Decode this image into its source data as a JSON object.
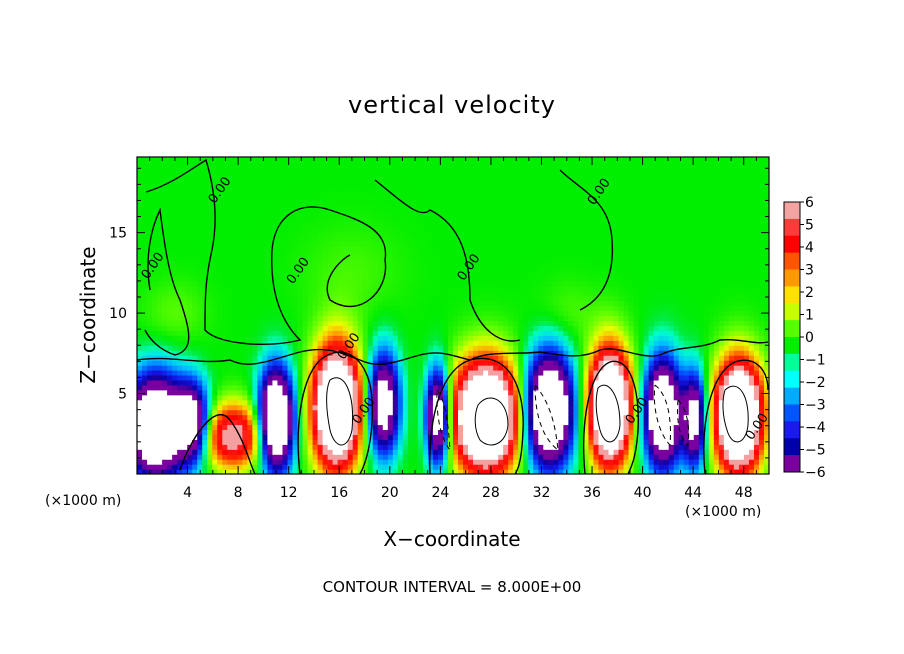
{
  "chart_data": {
    "type": "heatmap",
    "title": "vertical velocity",
    "xlabel": "X−coordinate",
    "ylabel": "Z−coordinate",
    "x_unit": "(×1000 m)",
    "x_unit_right": "(×1000 m)",
    "footer": "CONTOUR INTERVAL = 8.000E+00",
    "xlim": [
      0,
      50
    ],
    "ylim": [
      0,
      19.7
    ],
    "x_ticks": [
      4,
      8,
      12,
      16,
      20,
      24,
      28,
      32,
      36,
      40,
      44,
      48
    ],
    "y_ticks": [
      5,
      10,
      15
    ],
    "colorbar": {
      "ticks": [
        6,
        5,
        4,
        3,
        2,
        1,
        0,
        -1,
        -2,
        -3,
        -4,
        -5,
        -6
      ],
      "range": [
        -6,
        6
      ],
      "colors": [
        "#f4a3a3",
        "#ff3a3a",
        "#ff0000",
        "#ff5500",
        "#ff9900",
        "#ffe000",
        "#c8ff00",
        "#55ff00",
        "#00ee00",
        "#00ff99",
        "#00ffff",
        "#00aaff",
        "#0055ff",
        "#1a1aee",
        "#0000aa",
        "#7a00a0"
      ]
    },
    "contour_labels": [
      {
        "text": "0.00",
        "x": 6.8,
        "y": 17.5
      },
      {
        "text": "0.00",
        "x": 1.5,
        "y": 12.8
      },
      {
        "text": "0.00",
        "x": 13.0,
        "y": 12.5
      },
      {
        "text": "0.00",
        "x": 17.0,
        "y": 7.8
      },
      {
        "text": "0.00",
        "x": 18.2,
        "y": 3.8
      },
      {
        "text": "0.00",
        "x": 26.5,
        "y": 12.7
      },
      {
        "text": "0.00",
        "x": 36.8,
        "y": 17.4
      },
      {
        "text": "0.00",
        "x": 39.8,
        "y": 3.8
      },
      {
        "text": "0.00",
        "x": 49.3,
        "y": 2.8
      }
    ],
    "cells": [
      {
        "x": 1.5,
        "y": 3.0,
        "sx": 2.2,
        "sy": 3.0,
        "v": -14
      },
      {
        "x": 4.4,
        "y": 3.2,
        "sx": 1.3,
        "sy": 2.4,
        "v": -9
      },
      {
        "x": 7.6,
        "y": 2.4,
        "sx": 2.6,
        "sy": 2.0,
        "v": 7
      },
      {
        "x": 11.0,
        "y": 3.4,
        "sx": 1.3,
        "sy": 3.0,
        "v": -14
      },
      {
        "x": 15.8,
        "y": 4.2,
        "sx": 1.8,
        "sy": 3.6,
        "v": 15
      },
      {
        "x": 19.5,
        "y": 4.4,
        "sx": 1.2,
        "sy": 3.0,
        "v": -10
      },
      {
        "x": 23.8,
        "y": 3.6,
        "sx": 0.9,
        "sy": 2.8,
        "v": -11
      },
      {
        "x": 27.6,
        "y": 3.6,
        "sx": 2.5,
        "sy": 3.3,
        "v": 15
      },
      {
        "x": 32.6,
        "y": 4.0,
        "sx": 1.8,
        "sy": 3.3,
        "v": -14
      },
      {
        "x": 37.4,
        "y": 4.2,
        "sx": 1.6,
        "sy": 3.4,
        "v": 15
      },
      {
        "x": 41.6,
        "y": 3.8,
        "sx": 1.4,
        "sy": 3.2,
        "v": -13
      },
      {
        "x": 44.1,
        "y": 3.4,
        "sx": 0.9,
        "sy": 2.8,
        "v": -9
      },
      {
        "x": 47.6,
        "y": 3.6,
        "sx": 1.8,
        "sy": 3.3,
        "v": 15
      },
      {
        "x": 17.0,
        "y": 12.5,
        "sx": 4.0,
        "sy": 3.0,
        "v": 0.6
      },
      {
        "x": 3.0,
        "y": 10.0,
        "sx": 2.5,
        "sy": 2.0,
        "v": 0.8
      },
      {
        "x": 34.0,
        "y": 10.0,
        "sx": 2.5,
        "sy": 2.0,
        "v": 0.7
      }
    ]
  }
}
